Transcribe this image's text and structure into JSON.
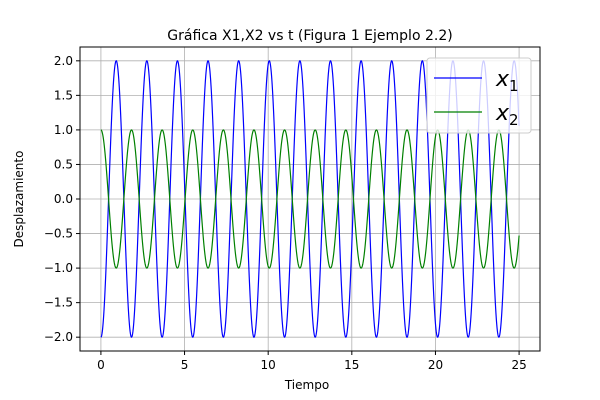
{
  "chart_data": {
    "type": "line",
    "title": "Gráfica X1,X2 vs t (Figura 1 Ejemplo 2.2)",
    "xlabel": "Tiempo",
    "ylabel": "Desplazamiento",
    "xlim": [
      -1.25,
      26.25
    ],
    "ylim": [
      -2.2,
      2.2
    ],
    "grid": true,
    "legend_position": "top-right",
    "x_ticks": [
      0,
      5,
      10,
      15,
      20,
      25
    ],
    "x_tick_labels": [
      "0",
      "5",
      "10",
      "15",
      "20",
      "25"
    ],
    "y_ticks": [
      2.0,
      1.5,
      1.0,
      0.5,
      0.0,
      -0.5,
      -1.0,
      -1.5,
      -2.0
    ],
    "y_tick_labels": [
      "2.0",
      "1.5",
      "1.0",
      "0.5",
      "0.0",
      "−0.5",
      "−1.0",
      "−1.5",
      "−2.0"
    ],
    "series": [
      {
        "name": "x1",
        "legend_base": "x",
        "legend_sub": "1",
        "color": "#0000ff",
        "t_start": 0,
        "t_end": 25,
        "amplitude": 2.0,
        "period": 1.83,
        "phase_shape": "negative-cosine",
        "points_description": "x1(t) = -2 cos(2π t / 1.83)"
      },
      {
        "name": "x2",
        "legend_base": "x",
        "legend_sub": "2",
        "color": "#008000",
        "t_start": 0,
        "t_end": 25,
        "amplitude": 1.0,
        "period": 1.83,
        "phase_shape": "cosine",
        "points_description": "x2(t) = cos(2π t / 1.83)"
      }
    ]
  }
}
